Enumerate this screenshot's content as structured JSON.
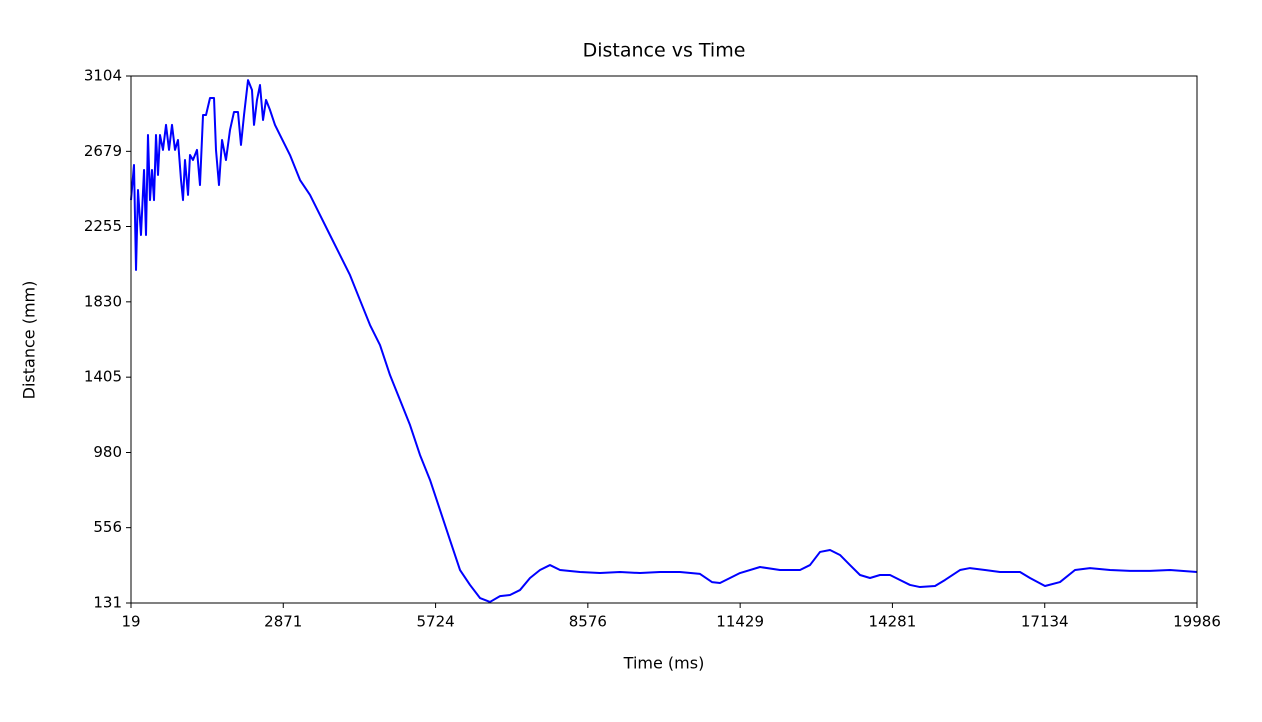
{
  "chart_data": {
    "type": "line",
    "title": "Distance vs Time",
    "x_label": "Time (ms)",
    "y_label": "Distance (mm)",
    "x": [
      19,
      75,
      113,
      150,
      206,
      263,
      300,
      337,
      375,
      412,
      450,
      487,
      525,
      562,
      618,
      675,
      731,
      787,
      843,
      899,
      956,
      993,
      1030,
      1087,
      1124,
      1180,
      1255,
      1311,
      1368,
      1424,
      1499,
      1574,
      1611,
      1667,
      1724,
      1798,
      1873,
      1948,
      2023,
      2079,
      2136,
      2211,
      2285,
      2323,
      2379,
      2435,
      2492,
      2548,
      2623,
      2716,
      2810,
      2997,
      3185,
      3372,
      3559,
      3746,
      3934,
      4121,
      4308,
      4496,
      4683,
      4870,
      5058,
      5245,
      5432,
      5620,
      5807,
      5994,
      6182,
      6369,
      6556,
      6743,
      6931,
      7118,
      7305,
      7493,
      7680,
      7867,
      8055,
      8429,
      8804,
      9178,
      9553,
      9928,
      10302,
      10677,
      10901,
      11051,
      11239,
      11426,
      11801,
      12175,
      12550,
      12737,
      12925,
      13112,
      13299,
      13486,
      13674,
      13861,
      14048,
      14236,
      14423,
      14610,
      14798,
      15079,
      15266,
      15547,
      15734,
      16015,
      16296,
      16671,
      16858,
      17139,
      17420,
      17701,
      17982,
      18357,
      18731,
      19106,
      19481,
      19986
    ],
    "series": [
      {
        "name": "Distance",
        "color": "#0000ff",
        "values": [
          2404,
          2602,
          2010,
          2461,
          2207,
          2574,
          2207,
          2771,
          2404,
          2574,
          2404,
          2771,
          2546,
          2771,
          2687,
          2828,
          2687,
          2828,
          2687,
          2743,
          2517,
          2404,
          2630,
          2433,
          2658,
          2630,
          2687,
          2489,
          2884,
          2884,
          2980,
          2980,
          2687,
          2489,
          2743,
          2630,
          2799,
          2901,
          2901,
          2715,
          2884,
          3081,
          3025,
          2828,
          2969,
          3053,
          2856,
          2969,
          2912,
          2828,
          2771,
          2658,
          2517,
          2433,
          2320,
          2207,
          2094,
          1981,
          1840,
          1699,
          1586,
          1417,
          1276,
          1135,
          966,
          825,
          656,
          486,
          317,
          233,
          159,
          137,
          170,
          176,
          204,
          272,
          317,
          345,
          317,
          306,
          300,
          306,
          300,
          306,
          306,
          295,
          249,
          244,
          272,
          300,
          334,
          317,
          317,
          345,
          419,
          430,
          402,
          345,
          289,
          272,
          289,
          289,
          261,
          233,
          221,
          227,
          261,
          317,
          328,
          317,
          306,
          306,
          272,
          227,
          249,
          317,
          328,
          317,
          312,
          312,
          317,
          306
        ]
      }
    ],
    "xlim": [
      19,
      19986
    ],
    "ylim": [
      131,
      3104
    ],
    "xticks": [
      19,
      2871,
      5724,
      8576,
      11429,
      14281,
      17134,
      19986
    ],
    "yticks": [
      131,
      556,
      980,
      1405,
      1830,
      2255,
      2679,
      3104
    ],
    "grid": false
  }
}
